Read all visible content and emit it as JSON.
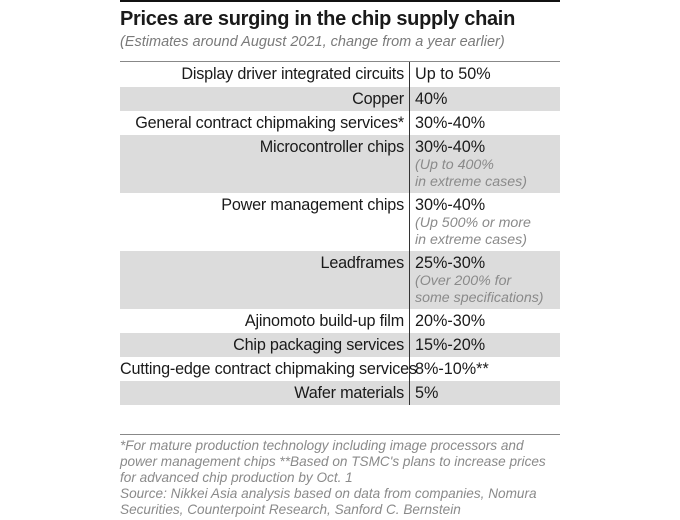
{
  "chart_data": {
    "type": "table",
    "title": "Prices are surging in the chip supply chain",
    "subtitle": "(Estimates around August 2021, change from a year earlier)",
    "rows": [
      {
        "item": "Display driver integrated circuits",
        "value": "Up to 50%",
        "note": ""
      },
      {
        "item": "Copper",
        "value": "40%",
        "note": ""
      },
      {
        "item": "General contract chipmaking services*",
        "value": "30%-40%",
        "note": ""
      },
      {
        "item": "Microcontroller chips",
        "value": "30%-40%",
        "note": "(Up to 400%\nin extreme cases)"
      },
      {
        "item": "Power management chips",
        "value": "30%-40%",
        "note": "(Up 500% or more\nin extreme cases)"
      },
      {
        "item": "Leadframes",
        "value": "25%-30%",
        "note": "(Over 200% for\nsome specifications)"
      },
      {
        "item": "Ajinomoto build-up film",
        "value": "20%-30%",
        "note": ""
      },
      {
        "item": "Chip packaging services",
        "value": "15%-20%",
        "note": ""
      },
      {
        "item": "Cutting-edge contract chipmaking services",
        "value": "8%-10%**",
        "note": ""
      },
      {
        "item": "Wafer materials",
        "value": "5%",
        "note": ""
      }
    ],
    "footnote": "*For mature production technology including image processors and\npower management chips  **Based on TSMC's plans to increase prices\nfor advanced chip production by Oct. 1",
    "source": "Source: Nikkei Asia analysis based on data from companies, Nomura\nSecurities, Counterpoint Research, Sanford C. Bernstein"
  }
}
